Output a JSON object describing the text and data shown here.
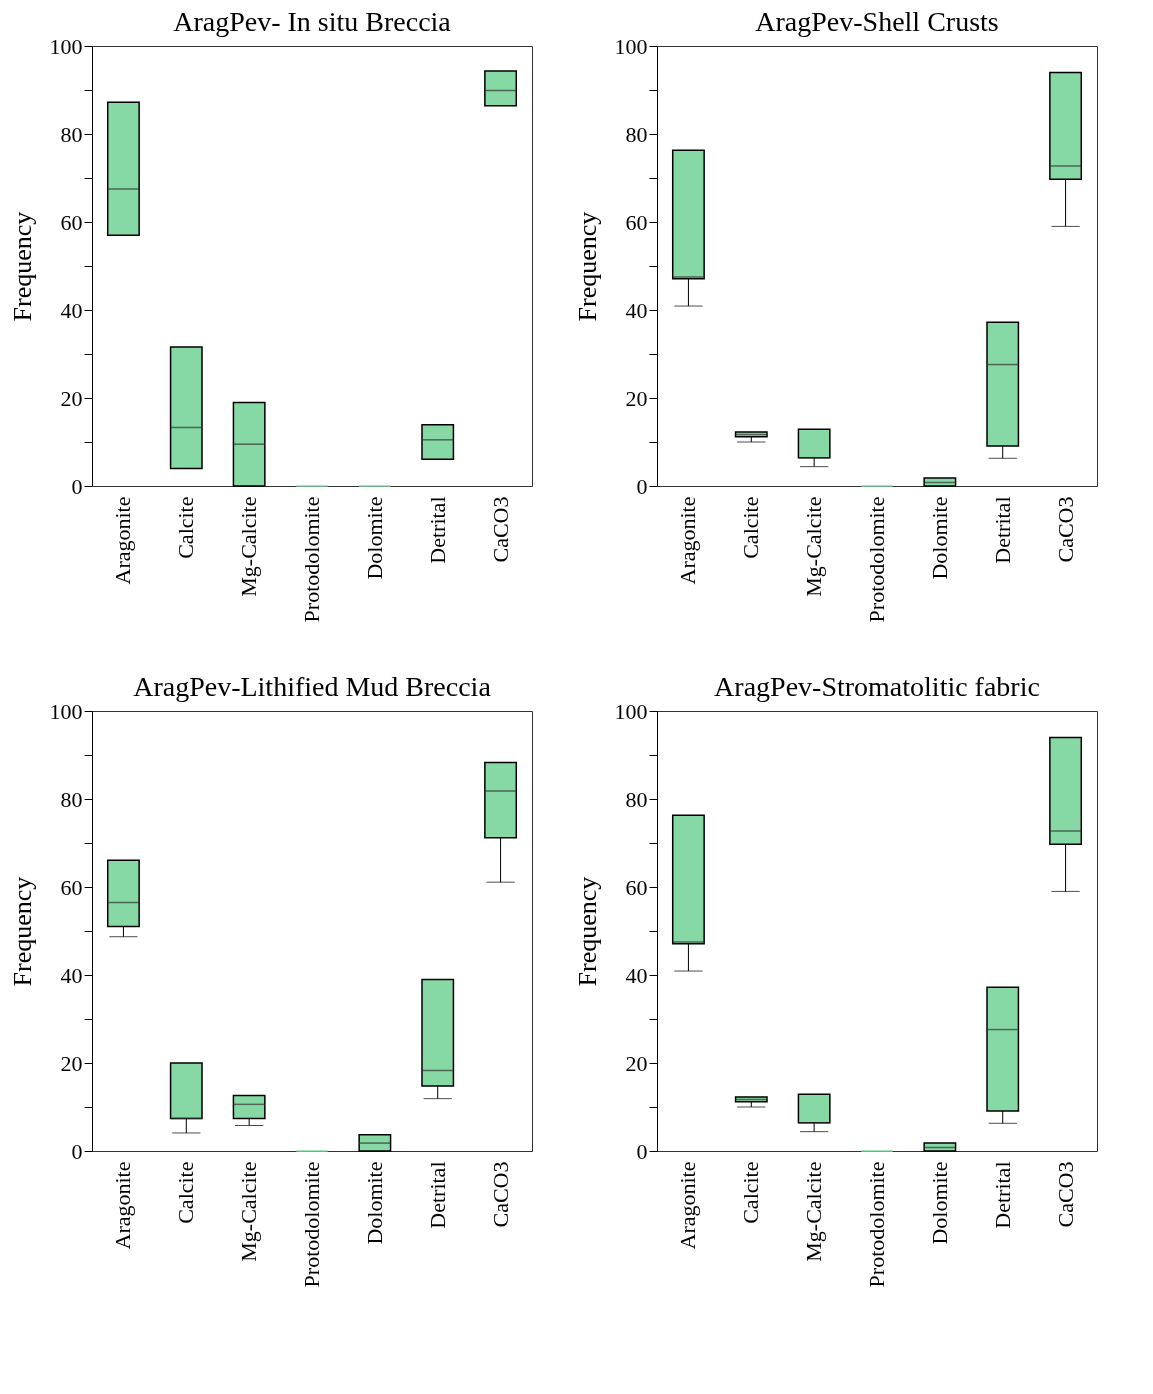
{
  "chart_data": [
    {
      "type": "box",
      "title": "AragPev- In situ Breccia",
      "ylabel": "Frequency",
      "categories": [
        "Aragonite",
        "Calcite",
        "Mg-Calcite",
        "Protodolomite",
        "Dolomite",
        "Detrital",
        "CaCO3"
      ],
      "ylim": [
        0,
        100
      ],
      "yticks": [
        0,
        {
          "value": 10,
          "label": null
        },
        20,
        {
          "value": 30,
          "label": null
        },
        40,
        {
          "value": 50,
          "label": null
        },
        60,
        {
          "value": 70,
          "label": null
        },
        80,
        {
          "value": 90,
          "label": null
        },
        100
      ],
      "grid": false,
      "series": [
        {
          "color": "#86d9a5",
          "boxes": [
            {
              "low": 57,
              "q1": 57,
              "median": 67.5,
              "q3": 87.2,
              "high": 87.2
            },
            {
              "low": 4,
              "q1": 4,
              "median": 13.3,
              "q3": 31.6,
              "high": 31.6
            },
            {
              "low": 0,
              "q1": 0,
              "median": 9.5,
              "q3": 19,
              "high": 19
            },
            {
              "low": 0,
              "q1": 0,
              "median": 0,
              "q3": 0,
              "high": 0
            },
            {
              "low": 0,
              "q1": 0,
              "median": 0,
              "q3": 0,
              "high": 0
            },
            {
              "low": 6.1,
              "q1": 6.1,
              "median": 10.5,
              "q3": 13.9,
              "high": 13.9
            },
            {
              "low": 86.4,
              "q1": 86.4,
              "median": 89.9,
              "q3": 94.3,
              "high": 94.3
            }
          ]
        }
      ]
    },
    {
      "type": "box",
      "title": "AragPev-Shell Crusts",
      "ylabel": "Frequency",
      "categories": [
        "Aragonite",
        "Calcite",
        "Mg-Calcite",
        "Protodolomite",
        "Dolomite",
        "Detrital",
        "CaCO3"
      ],
      "ylim": [
        0,
        100
      ],
      "yticks": [
        0,
        {
          "value": 10,
          "label": null
        },
        20,
        {
          "value": 30,
          "label": null
        },
        40,
        {
          "value": 50,
          "label": null
        },
        60,
        {
          "value": 70,
          "label": null
        },
        80,
        {
          "value": 90,
          "label": null
        },
        100
      ],
      "grid": false,
      "series": [
        {
          "color": "#86d9a5",
          "boxes": [
            {
              "low": 40.9,
              "q1": 47.1,
              "median": 47.5,
              "q3": 76.3,
              "high": 76.3
            },
            {
              "low": 10,
              "q1": 11.2,
              "median": 11.7,
              "q3": 12.3,
              "high": 12.3
            },
            {
              "low": 4.4,
              "q1": 6.4,
              "median": 6.4,
              "q3": 12.9,
              "high": 12.9
            },
            {
              "low": 0,
              "q1": 0,
              "median": 0,
              "q3": 0,
              "high": 0
            },
            {
              "low": 0,
              "q1": 0,
              "median": 0.8,
              "q3": 1.8,
              "high": 1.8
            },
            {
              "low": 6.3,
              "q1": 9.1,
              "median": 27.6,
              "q3": 37.2,
              "high": 37.2
            },
            {
              "low": 59,
              "q1": 69.7,
              "median": 72.7,
              "q3": 94,
              "high": 94
            }
          ]
        }
      ]
    },
    {
      "type": "box",
      "title": "AragPev-Lithified Mud Breccia",
      "ylabel": "Frequency",
      "categories": [
        "Aragonite",
        "Calcite",
        "Mg-Calcite",
        "Protodolomite",
        "Dolomite",
        "Detrital",
        "CaCO3"
      ],
      "ylim": [
        0,
        100
      ],
      "yticks": [
        0,
        {
          "value": 10,
          "label": null
        },
        20,
        {
          "value": 30,
          "label": null
        },
        40,
        {
          "value": 50,
          "label": null
        },
        60,
        {
          "value": 70,
          "label": null
        },
        80,
        {
          "value": 90,
          "label": null
        },
        100
      ],
      "grid": false,
      "series": [
        {
          "color": "#86d9a5",
          "boxes": [
            {
              "low": 48.7,
              "q1": 51,
              "median": 56.5,
              "q3": 66.1,
              "high": 66.1
            },
            {
              "low": 4.1,
              "q1": 7.4,
              "median": 7.4,
              "q3": 20,
              "high": 20
            },
            {
              "low": 5.8,
              "q1": 7.4,
              "median": 10.6,
              "q3": 12.6,
              "high": 12.6
            },
            {
              "low": 0,
              "q1": 0,
              "median": 0,
              "q3": 0,
              "high": 0
            },
            {
              "low": 0,
              "q1": 0,
              "median": 1.8,
              "q3": 3.7,
              "high": 3.7
            },
            {
              "low": 11.9,
              "q1": 14.8,
              "median": 18.3,
              "q3": 39,
              "high": 39
            },
            {
              "low": 61.1,
              "q1": 71.2,
              "median": 81.8,
              "q3": 88.3,
              "high": 88.3
            }
          ]
        }
      ]
    },
    {
      "type": "box",
      "title": "AragPev-Stromatolitic fabric",
      "ylabel": "Frequency",
      "categories": [
        "Aragonite",
        "Calcite",
        "Mg-Calcite",
        "Protodolomite",
        "Dolomite",
        "Detrital",
        "CaCO3"
      ],
      "ylim": [
        0,
        100
      ],
      "yticks": [
        0,
        {
          "value": 10,
          "label": null
        },
        20,
        {
          "value": 30,
          "label": null
        },
        40,
        {
          "value": 50,
          "label": null
        },
        60,
        {
          "value": 70,
          "label": null
        },
        80,
        {
          "value": 90,
          "label": null
        },
        100
      ],
      "grid": false,
      "series": [
        {
          "color": "#86d9a5",
          "boxes": [
            {
              "low": 40.9,
              "q1": 47.1,
              "median": 47.5,
              "q3": 76.3,
              "high": 76.3
            },
            {
              "low": 10,
              "q1": 11.2,
              "median": 11.7,
              "q3": 12.3,
              "high": 12.3
            },
            {
              "low": 4.4,
              "q1": 6.4,
              "median": 6.4,
              "q3": 12.9,
              "high": 12.9
            },
            {
              "low": 0,
              "q1": 0,
              "median": 0,
              "q3": 0,
              "high": 0
            },
            {
              "low": 0,
              "q1": 0,
              "median": 0.8,
              "q3": 1.8,
              "high": 1.8
            },
            {
              "low": 6.3,
              "q1": 9.1,
              "median": 27.6,
              "q3": 37.2,
              "high": 37.2
            },
            {
              "low": 59,
              "q1": 69.7,
              "median": 72.7,
              "q3": 94,
              "high": 94
            }
          ]
        }
      ]
    }
  ]
}
